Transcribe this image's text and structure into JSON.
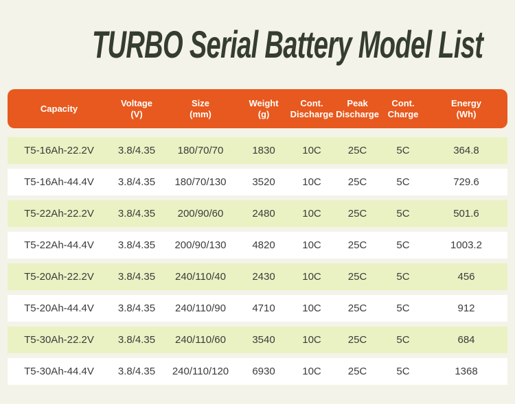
{
  "title": "TURBO Serial Battery Model List",
  "colors": {
    "page_bg": "#F4F3E9",
    "title_text": "#353D31",
    "header_bg": "#E7591E",
    "header_text": "#FFFFFF",
    "row_bg": "#FFFFFF",
    "row_alt_bg": "#EAF2C3",
    "cell_text": "#3B3B3B"
  },
  "chart_data": {
    "type": "table",
    "title": "TURBO Serial Battery Model List",
    "columns": [
      {
        "line1": "Capacity",
        "line2": ""
      },
      {
        "line1": "Voltage",
        "line2": "(V)"
      },
      {
        "line1": "Size",
        "line2": "(mm)"
      },
      {
        "line1": "Weight",
        "line2": "(g)"
      },
      {
        "line1": "Cont.",
        "line2": "Discharge"
      },
      {
        "line1": "Peak",
        "line2": "Discharge"
      },
      {
        "line1": "Cont.",
        "line2": "Charge"
      },
      {
        "line1": "Energy",
        "line2": "(Wh)"
      }
    ],
    "rows": [
      [
        "T5-16Ah-22.2V",
        "3.8/4.35",
        "180/70/70",
        "1830",
        "10C",
        "25C",
        "5C",
        "364.8"
      ],
      [
        "T5-16Ah-44.4V",
        "3.8/4.35",
        "180/70/130",
        "3520",
        "10C",
        "25C",
        "5C",
        "729.6"
      ],
      [
        "T5-22Ah-22.2V",
        "3.8/4.35",
        "200/90/60",
        "2480",
        "10C",
        "25C",
        "5C",
        "501.6"
      ],
      [
        "T5-22Ah-44.4V",
        "3.8/4.35",
        "200/90/130",
        "4820",
        "10C",
        "25C",
        "5C",
        "1003.2"
      ],
      [
        "T5-20Ah-22.2V",
        "3.8/4.35",
        "240/110/40",
        "2430",
        "10C",
        "25C",
        "5C",
        "456"
      ],
      [
        "T5-20Ah-44.4V",
        "3.8/4.35",
        "240/110/90",
        "4710",
        "10C",
        "25C",
        "5C",
        "912"
      ],
      [
        "T5-30Ah-22.2V",
        "3.8/4.35",
        "240/110/60",
        "3540",
        "10C",
        "25C",
        "5C",
        "684"
      ],
      [
        "T5-30Ah-44.4V",
        "3.8/4.35",
        "240/110/120",
        "6930",
        "10C",
        "25C",
        "5C",
        "1368"
      ]
    ]
  }
}
